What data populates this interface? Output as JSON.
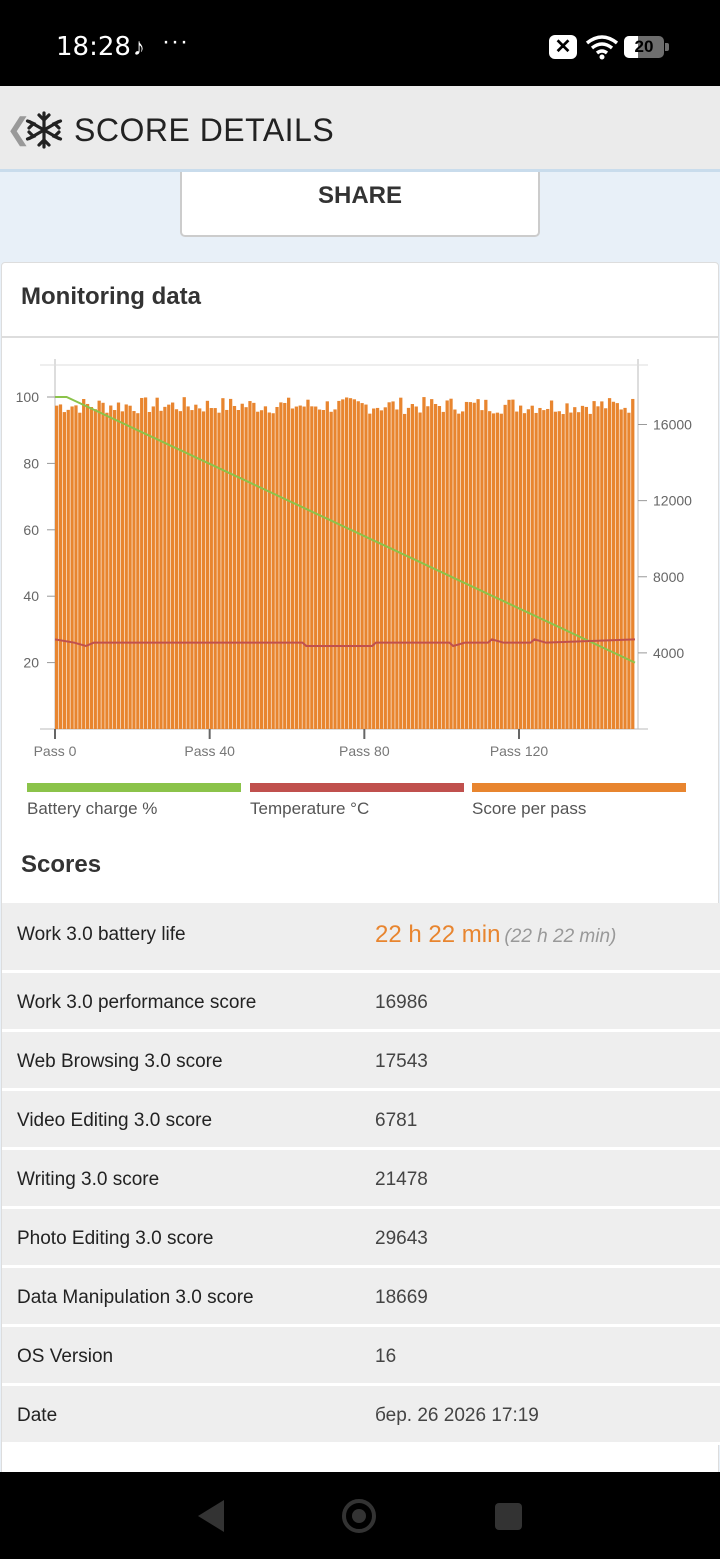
{
  "status_bar": {
    "time": "18:28",
    "notification_icon": "music-note-icon",
    "more_indicator": "···",
    "battery_level": "20"
  },
  "header": {
    "title": "SCORE DETAILS",
    "back_icon": "chevron-left-icon",
    "logo_icon": "snowflake-icon"
  },
  "share_label": "SHARE",
  "monitoring": {
    "title": "Monitoring data"
  },
  "chart_data": {
    "type": "bar",
    "title": "",
    "x_ticks": [
      "Pass 0",
      "Pass 40",
      "Pass 80",
      "Pass 120"
    ],
    "left_axis_ticks": [
      "100",
      "80",
      "60",
      "40",
      "20"
    ],
    "right_axis_ticks": [
      "16000",
      "12000",
      "8000",
      "4000"
    ],
    "left_ylim": [
      0,
      110
    ],
    "right_ylim": [
      0,
      19200
    ],
    "xlim": [
      0,
      150
    ],
    "grid": false,
    "legend_position": "bottom",
    "series": [
      {
        "name": "Battery charge %",
        "type": "line",
        "color": "#8bc34a",
        "axis": "left",
        "points": [
          [
            0,
            100
          ],
          [
            3,
            100
          ],
          [
            150,
            20
          ]
        ]
      },
      {
        "name": "Temperature °C",
        "type": "line",
        "color": "#c0504d",
        "axis": "left",
        "points": [
          [
            0,
            27
          ],
          [
            5,
            26
          ],
          [
            8,
            25
          ],
          [
            10,
            26
          ],
          [
            64,
            26
          ],
          [
            65,
            25
          ],
          [
            82,
            25
          ],
          [
            83,
            26
          ],
          [
            102,
            26
          ],
          [
            103,
            25
          ],
          [
            106,
            26
          ],
          [
            112,
            26
          ],
          [
            113,
            27
          ],
          [
            116,
            26
          ],
          [
            123,
            26
          ],
          [
            124,
            27
          ],
          [
            127,
            26
          ],
          [
            150,
            27
          ]
        ]
      },
      {
        "name": "Score per pass",
        "type": "bar",
        "color": "#e8852f",
        "axis": "right",
        "approx_value": 17000
      }
    ]
  },
  "scores": {
    "title": "Scores",
    "rows": [
      {
        "label": "Work 3.0 battery life",
        "value": "22 h 22 min",
        "sub": "(22 h 22 min)"
      },
      {
        "label": "Work 3.0 performance score",
        "value": "16986"
      },
      {
        "label": "Web Browsing 3.0 score",
        "value": "17543"
      },
      {
        "label": "Video Editing 3.0 score",
        "value": "6781"
      },
      {
        "label": "Writing 3.0 score",
        "value": "21478"
      },
      {
        "label": "Photo Editing 3.0 score",
        "value": "29643"
      },
      {
        "label": "Data Manipulation 3.0 score",
        "value": "18669"
      },
      {
        "label": "OS Version",
        "value": "16"
      },
      {
        "label": "Date",
        "value": "бер. 26 2026 17:19"
      }
    ]
  },
  "colors": {
    "accent": "#e8852f",
    "battery": "#8bc34a",
    "temperature": "#c0504d"
  }
}
